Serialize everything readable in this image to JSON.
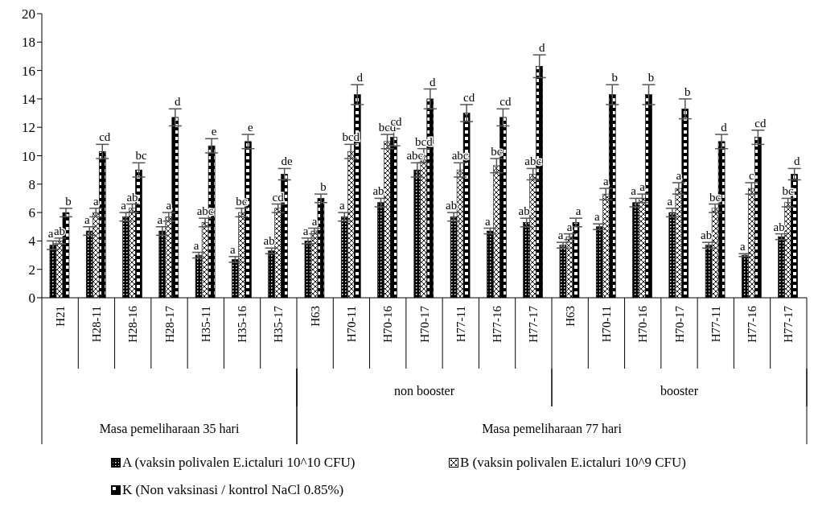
{
  "chart_data": {
    "type": "bar",
    "categories": [
      "H21",
      "H28-11",
      "H28-16",
      "H28-17",
      "H35-11",
      "H35-16",
      "H35-17",
      "H63",
      "H70-11",
      "H70-16",
      "H70-17",
      "H77-11",
      "H77-16",
      "H77-17",
      "H63",
      "H70-11",
      "H70-16",
      "H70-17",
      "H77-11",
      "H77-16",
      "H77-17"
    ],
    "series": [
      {
        "name": "A (vaksin polivalen E.ictaluri 10^10 CFU)",
        "color": "#000000",
        "values": [
          3.7,
          4.7,
          5.7,
          4.7,
          3.0,
          2.7,
          3.3,
          4.0,
          5.7,
          6.7,
          9.0,
          5.7,
          4.7,
          5.3,
          3.7,
          5.0,
          6.7,
          6.0,
          3.7,
          3.0,
          4.3
        ],
        "errors": [
          0.3,
          0.3,
          0.3,
          0.3,
          0.2,
          0.2,
          0.2,
          0.2,
          0.3,
          0.3,
          0.5,
          0.3,
          0.2,
          0.3,
          0.2,
          0.2,
          0.3,
          0.3,
          0.2,
          0.1,
          0.2
        ],
        "value_labels": [
          "a",
          "a",
          "a",
          "a",
          "a",
          "a",
          "ab",
          "a",
          "a",
          "ab",
          "abc",
          "ab",
          "a",
          "ab",
          "a",
          "a",
          "a",
          "a",
          "ab",
          "a",
          "ab"
        ]
      },
      {
        "name": "B (vaksin polivalen E.ictaluri 10^9 CFU)",
        "color": "#ffffff",
        "values": [
          4.0,
          6.0,
          6.3,
          5.7,
          5.3,
          6.0,
          6.3,
          4.7,
          10.3,
          11.0,
          10.0,
          9.0,
          9.3,
          8.7,
          4.3,
          7.3,
          7.0,
          7.7,
          6.3,
          7.7,
          6.7
        ],
        "errors": [
          0.2,
          0.3,
          0.3,
          0.3,
          0.3,
          0.3,
          0.3,
          0.2,
          0.5,
          0.5,
          0.5,
          0.5,
          0.5,
          0.4,
          0.2,
          0.4,
          0.3,
          0.4,
          0.3,
          0.4,
          0.3
        ],
        "value_labels": [
          "ab",
          "a",
          "ab",
          "a",
          "abc",
          "bc",
          "cd",
          "a",
          "bcd",
          "bcd",
          "bcd",
          "abc",
          "bc",
          "abc",
          "a",
          "a",
          "a",
          "a",
          "bc",
          "c",
          "bc"
        ]
      },
      {
        "name": "K (Non vaksinasi / kontrol NaCl 0.85%)",
        "color": "#000000",
        "values": [
          6.0,
          10.3,
          9.0,
          12.7,
          10.7,
          11.0,
          8.7,
          7.0,
          14.3,
          11.3,
          14.0,
          13.0,
          12.7,
          16.3,
          5.3,
          14.3,
          14.3,
          13.3,
          11.0,
          11.3,
          8.7
        ],
        "errors": [
          0.3,
          0.5,
          0.5,
          0.6,
          0.5,
          0.5,
          0.4,
          0.3,
          0.7,
          0.6,
          0.7,
          0.6,
          0.6,
          0.8,
          0.3,
          0.7,
          0.7,
          0.7,
          0.5,
          0.5,
          0.4
        ],
        "value_labels": [
          "b",
          "cd",
          "bc",
          "d",
          "e",
          "e",
          "de",
          "b",
          "d",
          "cd",
          "d",
          "cd",
          "cd",
          "d",
          "a",
          "b",
          "b",
          "b",
          "d",
          "cd",
          "d"
        ]
      }
    ],
    "ylim": [
      0,
      20
    ],
    "yticks": [
      0,
      2,
      4,
      6,
      8,
      10,
      12,
      14,
      16,
      18,
      20
    ],
    "grid": false,
    "legend": "bottom",
    "annotations": [
      "non booster",
      "booster",
      "Masa pemeliharaan 35 hari",
      "Masa pemeliharaan 77 hari"
    ]
  }
}
